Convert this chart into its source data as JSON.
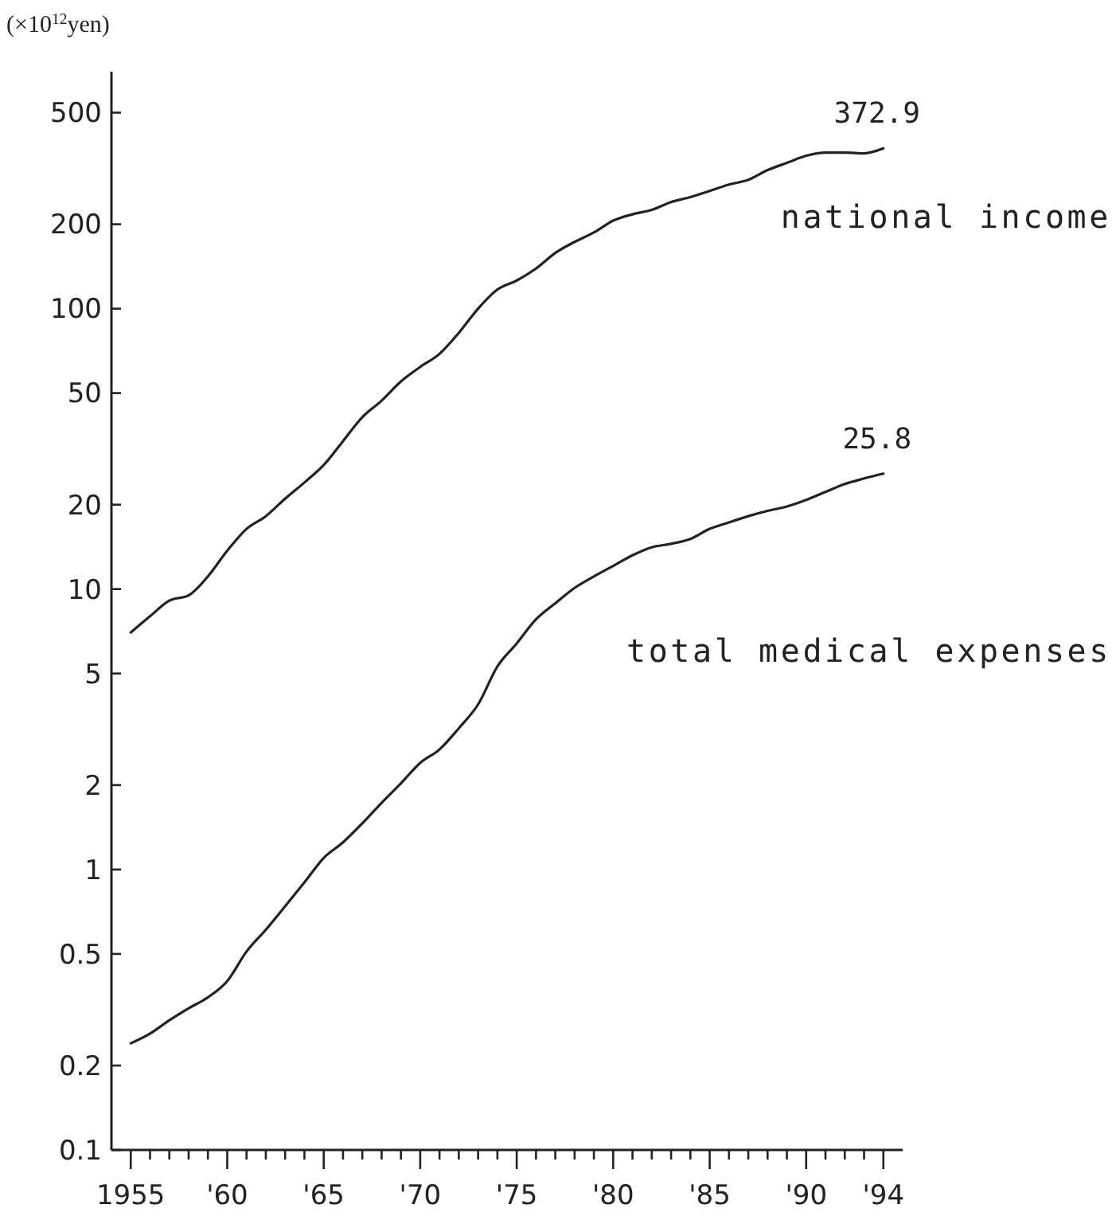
{
  "chart_data": {
    "type": "line",
    "ylabel": "(×10$^{12}$yen)",
    "log": true,
    "grid": false,
    "legend": false,
    "marker": "none",
    "line_style": "solid",
    "x": [
      1955,
      1956,
      1957,
      1958,
      1959,
      1960,
      1961,
      1962,
      1963,
      1964,
      1965,
      1966,
      1967,
      1968,
      1969,
      1970,
      1971,
      1972,
      1973,
      1974,
      1975,
      1976,
      1977,
      1978,
      1979,
      1980,
      1981,
      1982,
      1983,
      1984,
      1985,
      1986,
      1987,
      1988,
      1989,
      1990,
      1991,
      1992,
      1993,
      1994
    ],
    "series": [
      {
        "name": "national income",
        "color": "#222222",
        "values": [
          7.0,
          8.0,
          9.1,
          9.5,
          11.1,
          13.7,
          16.4,
          18.2,
          21,
          24,
          27.7,
          33.7,
          41,
          47,
          55,
          62,
          69,
          82,
          100,
          117,
          126,
          139,
          158,
          173,
          187,
          206,
          217,
          225,
          240,
          250,
          263,
          277,
          288,
          312,
          331,
          351,
          360,
          360,
          358,
          372.9
        ]
      },
      {
        "name": "total medical expenses",
        "color": "#222222",
        "values": [
          0.24,
          0.26,
          0.29,
          0.32,
          0.35,
          0.4,
          0.51,
          0.61,
          0.74,
          0.9,
          1.1,
          1.25,
          1.46,
          1.73,
          2.03,
          2.4,
          2.68,
          3.19,
          3.88,
          5.3,
          6.4,
          7.8,
          8.9,
          10.1,
          11.1,
          12.1,
          13.2,
          14.1,
          14.5,
          15.1,
          16.4,
          17.3,
          18.2,
          19.0,
          19.7,
          20.8,
          22.2,
          23.7,
          24.8,
          25.8
        ]
      }
    ],
    "xlim": [
      1954,
      1995
    ],
    "xticks": [
      {
        "value": 1955,
        "label": "1955"
      },
      {
        "value": 1956,
        "label": null
      },
      {
        "value": 1957,
        "label": null
      },
      {
        "value": 1958,
        "label": null
      },
      {
        "value": 1959,
        "label": null
      },
      {
        "value": 1960,
        "label": "'60"
      },
      {
        "value": 1961,
        "label": null
      },
      {
        "value": 1962,
        "label": null
      },
      {
        "value": 1963,
        "label": null
      },
      {
        "value": 1964,
        "label": null
      },
      {
        "value": 1965,
        "label": "'65"
      },
      {
        "value": 1966,
        "label": null
      },
      {
        "value": 1967,
        "label": null
      },
      {
        "value": 1968,
        "label": null
      },
      {
        "value": 1969,
        "label": null
      },
      {
        "value": 1970,
        "label": "'70"
      },
      {
        "value": 1971,
        "label": null
      },
      {
        "value": 1972,
        "label": null
      },
      {
        "value": 1973,
        "label": null
      },
      {
        "value": 1974,
        "label": null
      },
      {
        "value": 1975,
        "label": "'75"
      },
      {
        "value": 1976,
        "label": null
      },
      {
        "value": 1977,
        "label": null
      },
      {
        "value": 1978,
        "label": null
      },
      {
        "value": 1979,
        "label": null
      },
      {
        "value": 1980,
        "label": "'80"
      },
      {
        "value": 1981,
        "label": null
      },
      {
        "value": 1982,
        "label": null
      },
      {
        "value": 1983,
        "label": null
      },
      {
        "value": 1984,
        "label": null
      },
      {
        "value": 1985,
        "label": "'85"
      },
      {
        "value": 1986,
        "label": null
      },
      {
        "value": 1987,
        "label": null
      },
      {
        "value": 1988,
        "label": null
      },
      {
        "value": 1989,
        "label": null
      },
      {
        "value": 1990,
        "label": "'90"
      },
      {
        "value": 1991,
        "label": null
      },
      {
        "value": 1992,
        "label": null
      },
      {
        "value": 1993,
        "label": null
      },
      {
        "value": 1994,
        "label": "'94"
      }
    ],
    "ylim": [
      0.1,
      700
    ],
    "yticks": [
      0.1,
      0.2,
      0.5,
      1,
      2,
      5,
      10,
      20,
      50,
      100,
      200,
      500
    ],
    "annotations": [
      {
        "text": "372.9",
        "x": 1994,
        "y": 372.9
      },
      {
        "text": "25.8",
        "x": 1994,
        "y": 25.8
      }
    ]
  }
}
